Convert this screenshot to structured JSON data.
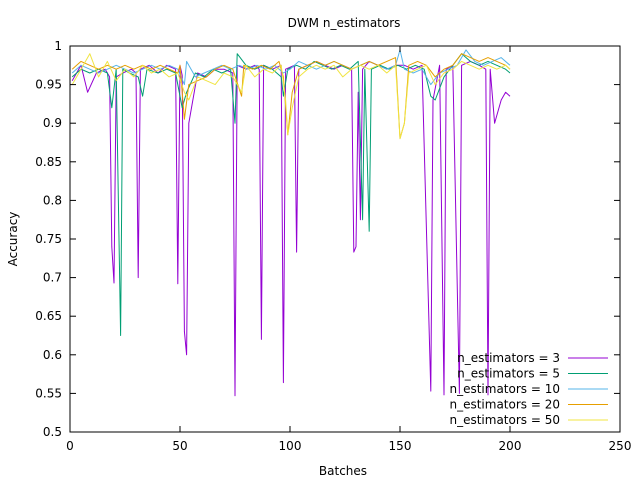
{
  "chart_data": {
    "type": "line",
    "title": "DWM n_estimators",
    "xlabel": "Batches",
    "ylabel": "Accuracy",
    "xlim": [
      0,
      250
    ],
    "ylim": [
      0.5,
      1.0
    ],
    "xticks": [
      "0",
      "50",
      "100",
      "150",
      "200",
      "250"
    ],
    "yticks": [
      "0.5",
      "0.55",
      "0.6",
      "0.65",
      "0.7",
      "0.75",
      "0.8",
      "0.85",
      "0.9",
      "0.95",
      "1"
    ],
    "grid": false,
    "legend_position": "bottom-right",
    "series": [
      {
        "name": "n_estimators = 3",
        "color": "#9400d3",
        "points": [
          [
            1,
            0.955
          ],
          [
            5,
            0.975
          ],
          [
            8,
            0.94
          ],
          [
            12,
            0.965
          ],
          [
            16,
            0.97
          ],
          [
            18,
            0.96
          ],
          [
            19,
            0.74
          ],
          [
            20,
            0.693
          ],
          [
            21,
            0.96
          ],
          [
            24,
            0.965
          ],
          [
            28,
            0.97
          ],
          [
            30,
            0.965
          ],
          [
            31,
            0.7
          ],
          [
            32,
            0.97
          ],
          [
            36,
            0.975
          ],
          [
            40,
            0.965
          ],
          [
            44,
            0.975
          ],
          [
            48,
            0.97
          ],
          [
            49,
            0.692
          ],
          [
            50,
            0.975
          ],
          [
            51,
            0.962
          ],
          [
            52,
            0.63
          ],
          [
            53,
            0.6
          ],
          [
            54,
            0.9
          ],
          [
            58,
            0.965
          ],
          [
            62,
            0.96
          ],
          [
            66,
            0.97
          ],
          [
            70,
            0.97
          ],
          [
            74,
            0.965
          ],
          [
            75,
            0.547
          ],
          [
            76,
            0.975
          ],
          [
            80,
            0.97
          ],
          [
            84,
            0.975
          ],
          [
            86,
            0.97
          ],
          [
            87,
            0.62
          ],
          [
            88,
            0.975
          ],
          [
            92,
            0.97
          ],
          [
            96,
            0.975
          ],
          [
            97,
            0.564
          ],
          [
            98,
            0.97
          ],
          [
            102,
            0.975
          ],
          [
            103,
            0.733
          ],
          [
            104,
            0.97
          ],
          [
            108,
            0.975
          ],
          [
            112,
            0.98
          ],
          [
            116,
            0.975
          ],
          [
            120,
            0.97
          ],
          [
            124,
            0.975
          ],
          [
            128,
            0.97
          ],
          [
            129,
            0.733
          ],
          [
            130,
            0.74
          ],
          [
            131,
            0.94
          ],
          [
            132,
            0.775
          ],
          [
            133,
            0.97
          ],
          [
            136,
            0.98
          ],
          [
            140,
            0.975
          ],
          [
            144,
            0.97
          ],
          [
            148,
            0.975
          ],
          [
            152,
            0.975
          ],
          [
            156,
            0.97
          ],
          [
            160,
            0.975
          ],
          [
            164,
            0.553
          ],
          [
            165,
            0.93
          ],
          [
            168,
            0.975
          ],
          [
            170,
            0.548
          ],
          [
            171,
            0.97
          ],
          [
            174,
            0.975
          ],
          [
            177,
            0.55
          ],
          [
            178,
            0.975
          ],
          [
            182,
            0.98
          ],
          [
            186,
            0.975
          ],
          [
            189,
            0.97
          ],
          [
            190,
            0.548
          ],
          [
            191,
            0.97
          ],
          [
            193,
            0.9
          ],
          [
            196,
            0.93
          ],
          [
            198,
            0.94
          ],
          [
            200,
            0.935
          ]
        ]
      },
      {
        "name": "n_estimators = 5",
        "color": "#009e73",
        "points": [
          [
            1,
            0.96
          ],
          [
            5,
            0.97
          ],
          [
            9,
            0.965
          ],
          [
            13,
            0.97
          ],
          [
            17,
            0.965
          ],
          [
            19,
            0.92
          ],
          [
            21,
            0.97
          ],
          [
            23,
            0.625
          ],
          [
            24,
            0.97
          ],
          [
            27,
            0.965
          ],
          [
            31,
            0.96
          ],
          [
            33,
            0.935
          ],
          [
            35,
            0.97
          ],
          [
            40,
            0.965
          ],
          [
            44,
            0.97
          ],
          [
            48,
            0.965
          ],
          [
            51,
            0.92
          ],
          [
            53,
            0.94
          ],
          [
            57,
            0.965
          ],
          [
            61,
            0.96
          ],
          [
            65,
            0.97
          ],
          [
            69,
            0.965
          ],
          [
            73,
            0.97
          ],
          [
            75,
            0.9
          ],
          [
            76,
            0.99
          ],
          [
            80,
            0.975
          ],
          [
            84,
            0.97
          ],
          [
            88,
            0.975
          ],
          [
            92,
            0.97
          ],
          [
            96,
            0.96
          ],
          [
            97,
            0.935
          ],
          [
            99,
            0.97
          ],
          [
            103,
            0.975
          ],
          [
            107,
            0.97
          ],
          [
            111,
            0.98
          ],
          [
            115,
            0.975
          ],
          [
            119,
            0.97
          ],
          [
            123,
            0.975
          ],
          [
            127,
            0.97
          ],
          [
            131,
            0.98
          ],
          [
            133,
            0.775
          ],
          [
            134,
            0.97
          ],
          [
            136,
            0.76
          ],
          [
            137,
            0.97
          ],
          [
            141,
            0.975
          ],
          [
            145,
            0.97
          ],
          [
            149,
            0.975
          ],
          [
            153,
            0.97
          ],
          [
            157,
            0.975
          ],
          [
            161,
            0.97
          ],
          [
            164,
            0.935
          ],
          [
            166,
            0.93
          ],
          [
            170,
            0.96
          ],
          [
            174,
            0.975
          ],
          [
            178,
            0.99
          ],
          [
            182,
            0.98
          ],
          [
            186,
            0.975
          ],
          [
            190,
            0.98
          ],
          [
            194,
            0.975
          ],
          [
            198,
            0.97
          ],
          [
            200,
            0.965
          ]
        ]
      },
      {
        "name": "n_estimators = 10",
        "color": "#56b4e9",
        "points": [
          [
            1,
            0.965
          ],
          [
            5,
            0.975
          ],
          [
            9,
            0.97
          ],
          [
            13,
            0.965
          ],
          [
            17,
            0.97
          ],
          [
            21,
            0.975
          ],
          [
            25,
            0.97
          ],
          [
            29,
            0.965
          ],
          [
            33,
            0.97
          ],
          [
            37,
            0.975
          ],
          [
            41,
            0.97
          ],
          [
            45,
            0.975
          ],
          [
            49,
            0.97
          ],
          [
            52,
            0.95
          ],
          [
            53,
            0.98
          ],
          [
            57,
            0.96
          ],
          [
            61,
            0.965
          ],
          [
            65,
            0.97
          ],
          [
            69,
            0.975
          ],
          [
            73,
            0.97
          ],
          [
            77,
            0.975
          ],
          [
            81,
            0.97
          ],
          [
            85,
            0.975
          ],
          [
            89,
            0.97
          ],
          [
            93,
            0.975
          ],
          [
            97,
            0.965
          ],
          [
            100,
            0.97
          ],
          [
            104,
            0.98
          ],
          [
            108,
            0.975
          ],
          [
            112,
            0.97
          ],
          [
            116,
            0.975
          ],
          [
            120,
            0.98
          ],
          [
            124,
            0.975
          ],
          [
            128,
            0.97
          ],
          [
            132,
            0.975
          ],
          [
            136,
            0.98
          ],
          [
            140,
            0.975
          ],
          [
            144,
            0.97
          ],
          [
            148,
            0.975
          ],
          [
            150,
            0.995
          ],
          [
            152,
            0.97
          ],
          [
            156,
            0.965
          ],
          [
            160,
            0.97
          ],
          [
            164,
            0.95
          ],
          [
            168,
            0.965
          ],
          [
            172,
            0.97
          ],
          [
            176,
            0.975
          ],
          [
            180,
            0.995
          ],
          [
            184,
            0.98
          ],
          [
            188,
            0.975
          ],
          [
            192,
            0.98
          ],
          [
            196,
            0.985
          ],
          [
            200,
            0.975
          ]
        ]
      },
      {
        "name": "n_estimators = 20",
        "color": "#e69f00",
        "points": [
          [
            1,
            0.97
          ],
          [
            5,
            0.98
          ],
          [
            9,
            0.975
          ],
          [
            13,
            0.97
          ],
          [
            17,
            0.975
          ],
          [
            21,
            0.97
          ],
          [
            25,
            0.975
          ],
          [
            29,
            0.97
          ],
          [
            33,
            0.975
          ],
          [
            37,
            0.97
          ],
          [
            41,
            0.975
          ],
          [
            45,
            0.97
          ],
          [
            49,
            0.965
          ],
          [
            50,
            0.975
          ],
          [
            52,
            0.905
          ],
          [
            54,
            0.95
          ],
          [
            58,
            0.955
          ],
          [
            62,
            0.96
          ],
          [
            66,
            0.97
          ],
          [
            70,
            0.975
          ],
          [
            74,
            0.97
          ],
          [
            78,
            0.935
          ],
          [
            79,
            0.975
          ],
          [
            83,
            0.97
          ],
          [
            87,
            0.975
          ],
          [
            91,
            0.97
          ],
          [
            95,
            0.98
          ],
          [
            97,
            0.96
          ],
          [
            99,
            0.885
          ],
          [
            101,
            0.94
          ],
          [
            104,
            0.97
          ],
          [
            108,
            0.975
          ],
          [
            112,
            0.98
          ],
          [
            116,
            0.975
          ],
          [
            120,
            0.98
          ],
          [
            124,
            0.975
          ],
          [
            128,
            0.97
          ],
          [
            132,
            0.975
          ],
          [
            136,
            0.98
          ],
          [
            140,
            0.975
          ],
          [
            144,
            0.98
          ],
          [
            148,
            0.985
          ],
          [
            150,
            0.88
          ],
          [
            152,
            0.9
          ],
          [
            154,
            0.975
          ],
          [
            158,
            0.98
          ],
          [
            162,
            0.975
          ],
          [
            166,
            0.96
          ],
          [
            170,
            0.97
          ],
          [
            174,
            0.975
          ],
          [
            178,
            0.99
          ],
          [
            182,
            0.985
          ],
          [
            186,
            0.98
          ],
          [
            190,
            0.985
          ],
          [
            194,
            0.98
          ],
          [
            198,
            0.975
          ],
          [
            200,
            0.97
          ]
        ]
      },
      {
        "name": "n_estimators = 50",
        "color": "#f0e442",
        "points": [
          [
            1,
            0.95
          ],
          [
            5,
            0.97
          ],
          [
            9,
            0.99
          ],
          [
            13,
            0.96
          ],
          [
            17,
            0.98
          ],
          [
            21,
            0.955
          ],
          [
            25,
            0.97
          ],
          [
            29,
            0.96
          ],
          [
            33,
            0.975
          ],
          [
            37,
            0.965
          ],
          [
            41,
            0.97
          ],
          [
            45,
            0.96
          ],
          [
            49,
            0.965
          ],
          [
            52,
            0.94
          ],
          [
            54,
            0.93
          ],
          [
            58,
            0.96
          ],
          [
            62,
            0.955
          ],
          [
            66,
            0.95
          ],
          [
            70,
            0.965
          ],
          [
            74,
            0.96
          ],
          [
            78,
            0.94
          ],
          [
            80,
            0.975
          ],
          [
            84,
            0.96
          ],
          [
            88,
            0.97
          ],
          [
            92,
            0.965
          ],
          [
            96,
            0.975
          ],
          [
            98,
            0.93
          ],
          [
            99,
            0.885
          ],
          [
            101,
            0.92
          ],
          [
            104,
            0.96
          ],
          [
            108,
            0.97
          ],
          [
            112,
            0.975
          ],
          [
            116,
            0.97
          ],
          [
            120,
            0.975
          ],
          [
            124,
            0.96
          ],
          [
            128,
            0.97
          ],
          [
            132,
            0.975
          ],
          [
            136,
            0.97
          ],
          [
            140,
            0.975
          ],
          [
            144,
            0.965
          ],
          [
            148,
            0.975
          ],
          [
            150,
            0.88
          ],
          [
            152,
            0.9
          ],
          [
            154,
            0.965
          ],
          [
            158,
            0.97
          ],
          [
            162,
            0.975
          ],
          [
            166,
            0.95
          ],
          [
            170,
            0.965
          ],
          [
            174,
            0.97
          ],
          [
            178,
            0.98
          ],
          [
            182,
            0.975
          ],
          [
            186,
            0.97
          ],
          [
            190,
            0.975
          ],
          [
            194,
            0.97
          ],
          [
            198,
            0.975
          ],
          [
            200,
            0.97
          ]
        ]
      }
    ]
  }
}
